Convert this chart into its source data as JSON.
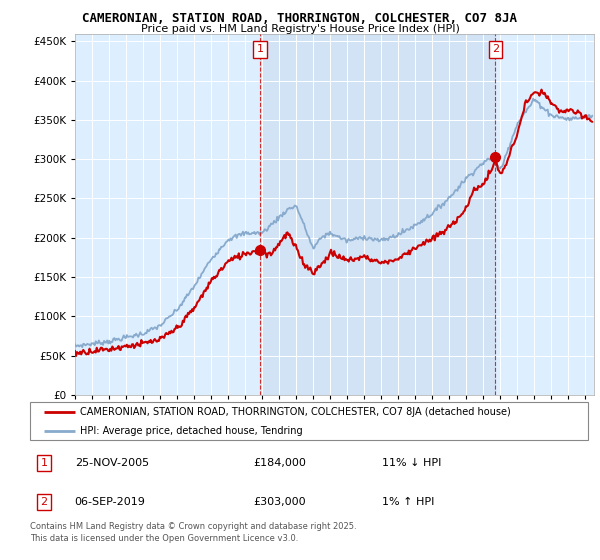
{
  "title1": "CAMERONIAN, STATION ROAD, THORRINGTON, COLCHESTER, CO7 8JA",
  "title2": "Price paid vs. HM Land Registry's House Price Index (HPI)",
  "legend_label1": "CAMERONIAN, STATION ROAD, THORRINGTON, COLCHESTER, CO7 8JA (detached house)",
  "legend_label2": "HPI: Average price, detached house, Tendring",
  "sale1_date": "25-NOV-2005",
  "sale1_price": "£184,000",
  "sale1_hpi": "11% ↓ HPI",
  "sale2_date": "06-SEP-2019",
  "sale2_price": "£303,000",
  "sale2_hpi": "1% ↑ HPI",
  "footer": "Contains HM Land Registry data © Crown copyright and database right 2025.\nThis data is licensed under the Open Government Licence v3.0.",
  "ylabel_ticks": [
    0,
    50000,
    100000,
    150000,
    200000,
    250000,
    300000,
    350000,
    400000,
    450000
  ],
  "ylim": [
    0,
    460000
  ],
  "xlim_left": 1995,
  "xlim_right": 2025.5,
  "line_color_property": "#cc0000",
  "line_color_hpi": "#88aacc",
  "sale_marker_color": "#cc0000",
  "dashed_line_color": "#cc0000",
  "plot_bg_color": "#ddeeff",
  "shade_bg_color": "#ccddf0",
  "grid_color": "#ffffff",
  "ann_box_edge_color": "#cc0000",
  "ann_box_face_color": "#ffffff",
  "ann_box_text_color": "#cc0000"
}
